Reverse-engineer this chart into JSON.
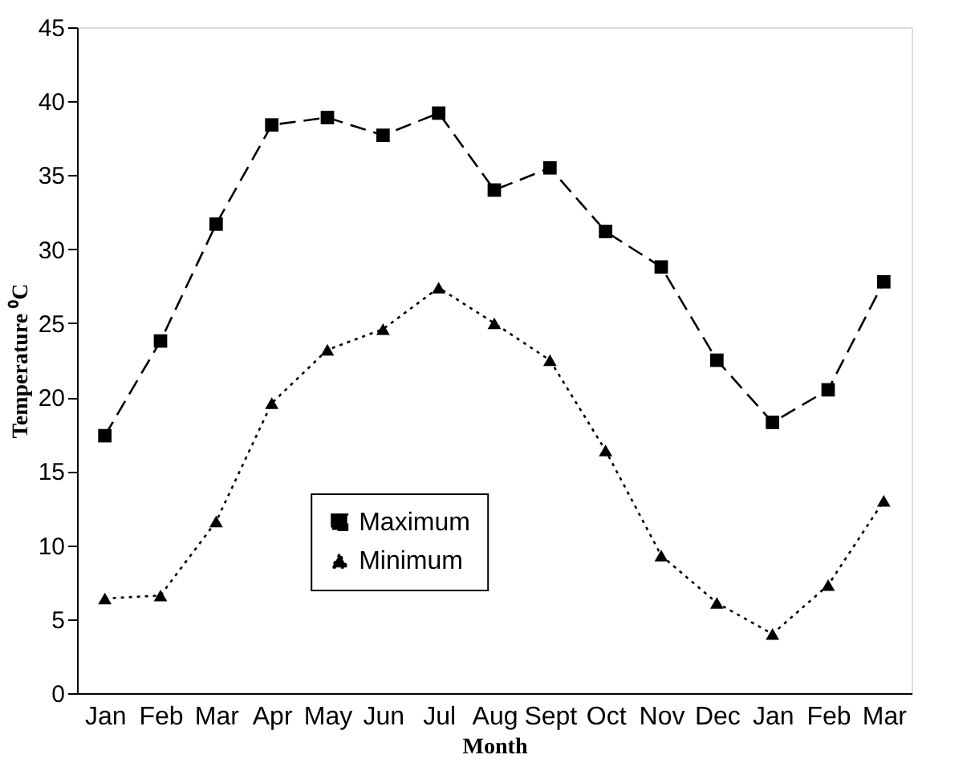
{
  "chart_data": {
    "type": "line",
    "xlabel": "Month",
    "ylabel": "Temperature ⁰C",
    "categories": [
      "Jan",
      "Feb",
      "Mar",
      "Apr",
      "May",
      "Jun",
      "Jul",
      "Aug",
      "Sept",
      "Oct",
      "Nov",
      "Dec",
      "Jan",
      "Feb",
      "Mar"
    ],
    "series": [
      {
        "name": "Maximum",
        "color": "#000000",
        "marker": "square",
        "line_style": "dashed",
        "values": [
          17.4,
          23.8,
          31.7,
          38.4,
          38.9,
          37.7,
          39.2,
          34.0,
          35.5,
          31.2,
          28.8,
          22.5,
          18.3,
          20.5,
          27.8
        ]
      },
      {
        "name": "Minimum",
        "color": "#000000",
        "marker": "triangle",
        "line_style": "dotted",
        "values": [
          6.4,
          6.6,
          11.6,
          19.6,
          23.2,
          24.6,
          27.4,
          25.0,
          22.5,
          16.4,
          9.3,
          6.1,
          4.0,
          7.3,
          13.0
        ]
      }
    ],
    "ylim": [
      0,
      45
    ],
    "yticks": [
      0,
      5,
      10,
      15,
      20,
      25,
      30,
      35,
      40,
      45
    ],
    "grid": false,
    "legend": "bottom"
  }
}
